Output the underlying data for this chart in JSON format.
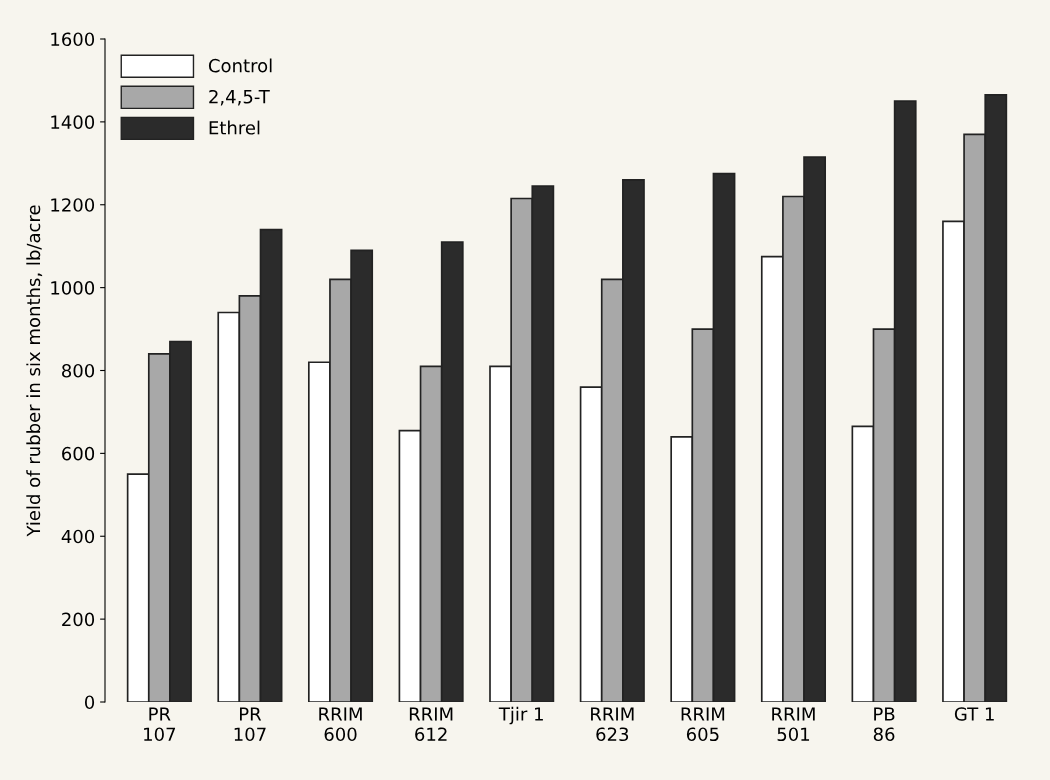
{
  "chart_data": {
    "type": "bar",
    "ylabel": "Yield of rubber in six months, lb/acre",
    "categories": [
      "PR\n107",
      "PR\n107",
      "RRIM\n600",
      "RRIM\n612",
      "Tjir 1",
      "RRIM\n623",
      "RRIM\n605",
      "RRIM\n501",
      "PB\n86",
      "GT 1"
    ],
    "series": [
      {
        "name": "Control",
        "color": "#ffffff",
        "values": [
          550,
          940,
          820,
          655,
          810,
          760,
          640,
          1075,
          665,
          1160
        ]
      },
      {
        "name": "2,4,5-T",
        "color": "#a8a8a8",
        "values": [
          840,
          980,
          1020,
          810,
          1215,
          1020,
          900,
          1220,
          900,
          1370
        ]
      },
      {
        "name": "Ethrel",
        "color": "#2b2b2b",
        "values": [
          870,
          1140,
          1090,
          1110,
          1245,
          1260,
          1275,
          1315,
          1450,
          1465
        ]
      }
    ],
    "ylim": [
      0,
      1600
    ],
    "yticks": [
      0,
      200,
      400,
      600,
      800,
      1000,
      1200,
      1400,
      1600
    ],
    "legend": "top left",
    "grid": false
  }
}
